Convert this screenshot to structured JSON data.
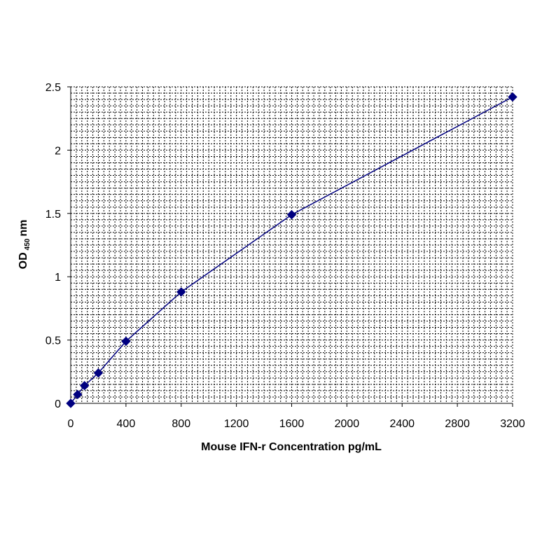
{
  "chart_data": {
    "type": "line",
    "xlabel": "Mouse IFN-r Concentration pg/mL",
    "ylabel": "OD",
    "ylabel_sub": "450",
    "ylabel_suffix": "nm",
    "xlim": [
      0,
      3200
    ],
    "ylim": [
      0,
      2.5
    ],
    "xticks": [
      0,
      400,
      800,
      1200,
      1600,
      2000,
      2400,
      2800,
      3200
    ],
    "yticks": [
      0,
      0.5,
      1,
      1.5,
      2,
      2.5
    ],
    "grid": true,
    "marker": "diamond",
    "series": [
      {
        "color": "#000080",
        "x": [
          0,
          50,
          100,
          200,
          400,
          800,
          1600,
          3200
        ],
        "y": [
          0.0,
          0.07,
          0.14,
          0.24,
          0.49,
          0.88,
          1.49,
          2.42
        ]
      }
    ]
  }
}
